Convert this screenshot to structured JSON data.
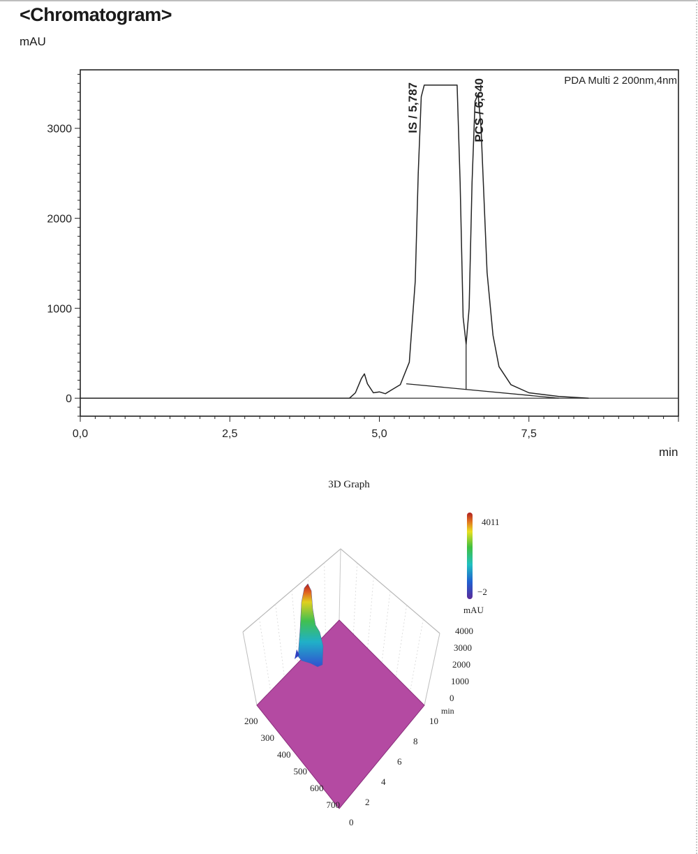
{
  "chart_data": [
    {
      "type": "line",
      "title": "<Chromatogram>",
      "ylabel": "mAU",
      "xlabel": "min",
      "legend": "PDA Multi 2 200nm,4nm",
      "legend_position": "top-right",
      "xlim": [
        0,
        10
      ],
      "ylim": [
        -200,
        3650
      ],
      "xticks": [
        "0,0",
        "2,5",
        "5,0",
        "7,5"
      ],
      "xtick_values": [
        0,
        2.5,
        5,
        7.5
      ],
      "yticks": [
        "0",
        "1000",
        "2000",
        "3000"
      ],
      "ytick_values": [
        0,
        1000,
        2000,
        3000
      ],
      "grid": false,
      "series": [
        {
          "x": [
            0,
            4.5,
            4.6,
            4.7,
            4.75,
            4.8,
            4.9,
            5.0,
            5.1,
            5.2,
            5.35,
            5.5,
            5.6,
            5.65,
            5.7,
            5.75,
            6.3,
            6.35,
            6.4,
            6.45,
            6.5,
            6.55,
            6.6,
            6.65,
            6.7,
            6.75,
            6.8,
            6.9,
            7.0,
            7.2,
            7.5,
            8.0,
            8.5
          ],
          "y": [
            0,
            0,
            60,
            220,
            270,
            160,
            60,
            70,
            50,
            90,
            150,
            400,
            1300,
            2500,
            3350,
            3480,
            3480,
            2400,
            900,
            600,
            1000,
            2400,
            3300,
            3380,
            3000,
            2200,
            1400,
            700,
            350,
            150,
            60,
            20,
            0
          ]
        }
      ],
      "baseline": {
        "x": [
          5.45,
          8.0
        ],
        "y": [
          160,
          0
        ]
      },
      "peaks": [
        {
          "label": "IS / 5,787",
          "x": 5.787
        },
        {
          "label": "PCS / 6,640",
          "x": 6.64
        }
      ],
      "valley_drop": {
        "x": 6.45
      }
    },
    {
      "type": "3d-surface",
      "title": "3D Graph",
      "z_unit": "mAU",
      "colorbar": {
        "max": "4011",
        "min": "−2",
        "unit": "mAU"
      },
      "z_axis_ticks": [
        "4000",
        "3000",
        "2000",
        "1000",
        "0"
      ],
      "wavelength_ticks": [
        "200",
        "300",
        "400",
        "500",
        "600",
        "700"
      ],
      "time_ticks": [
        "0",
        "2",
        "4",
        "6",
        "8",
        "10"
      ],
      "time_unit": "min",
      "surface_color": "#b44aa2"
    }
  ]
}
